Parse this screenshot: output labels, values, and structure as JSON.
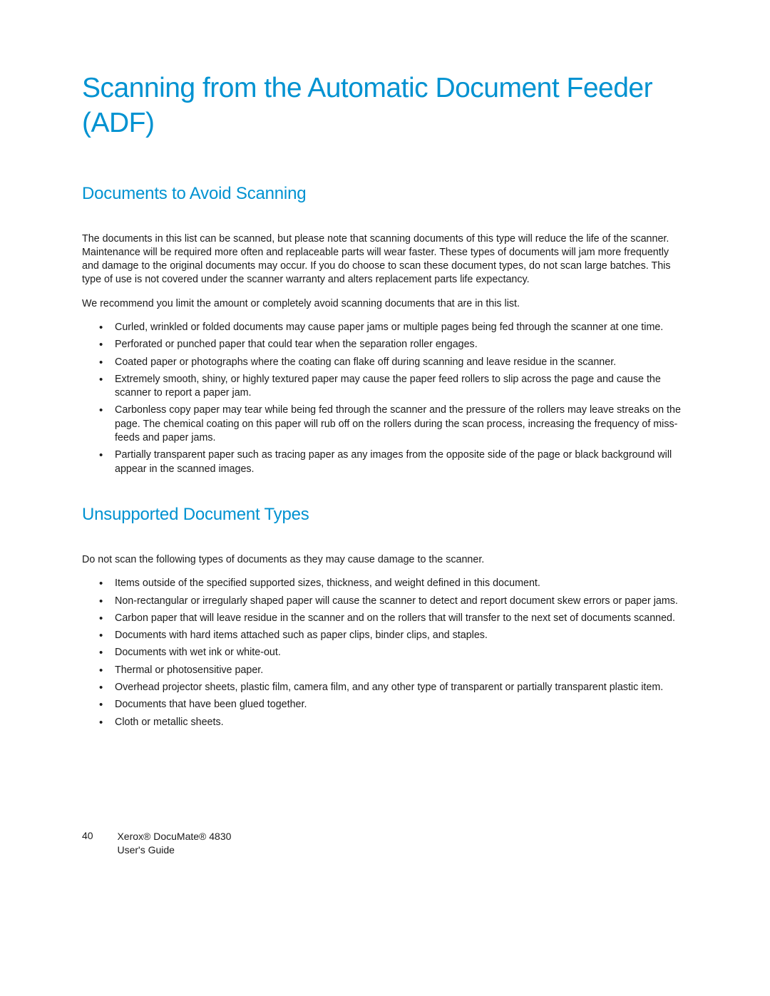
{
  "title": "Scanning from the Automatic Document Feeder (ADF)",
  "section1": {
    "heading": "Documents to Avoid Scanning",
    "p1": "The documents in this list can be scanned, but please note that scanning documents of this type will reduce the life of the scanner. Maintenance will be required more often and replaceable parts will wear faster. These types of documents will jam more frequently and damage to the original documents may occur. If you do choose to scan these document types, do not scan large batches. This type of use is not covered under the scanner warranty and alters replacement parts life expectancy.",
    "p2": "We recommend you limit the amount or completely avoid scanning documents that are in this list.",
    "bullets": [
      "Curled, wrinkled or folded documents may cause paper jams or multiple pages being fed through the scanner at one time.",
      "Perforated or punched paper that could tear when the separation roller engages.",
      "Coated paper or photographs where the coating can flake off during scanning and leave residue in the scanner.",
      "Extremely smooth, shiny, or highly textured paper may cause the paper feed rollers to slip across the page and cause the scanner to report a paper jam.",
      "Carbonless copy paper may tear while being fed through the scanner and the pressure of the rollers may leave streaks on the page. The chemical coating on this paper will rub off on the rollers during the scan process, increasing the frequency of miss-feeds and paper jams.",
      "Partially transparent paper such as tracing paper as any images from the opposite side of the page or black background will appear in the scanned images."
    ]
  },
  "section2": {
    "heading": "Unsupported Document Types",
    "p1": "Do not scan the following types of documents as they may cause damage to the scanner.",
    "bullets": [
      "Items outside of the specified supported sizes, thickness, and weight defined in this document.",
      "Non-rectangular or irregularly shaped paper will cause the scanner to detect and report document skew errors or paper jams.",
      "Carbon paper that will leave residue in the scanner and on the rollers that will transfer to the next set of documents scanned.",
      "Documents with hard items attached such as paper clips, binder clips, and staples.",
      "Documents with wet ink or white-out.",
      "Thermal or photosensitive paper.",
      "Overhead projector sheets, plastic film, camera film, and any other type of transparent or partially transparent plastic item.",
      "Documents that have been glued together.",
      "Cloth or metallic sheets."
    ]
  },
  "footer": {
    "page_number": "40",
    "product_line1": "Xerox® DocuMate® 4830",
    "product_line2": "User's Guide"
  }
}
